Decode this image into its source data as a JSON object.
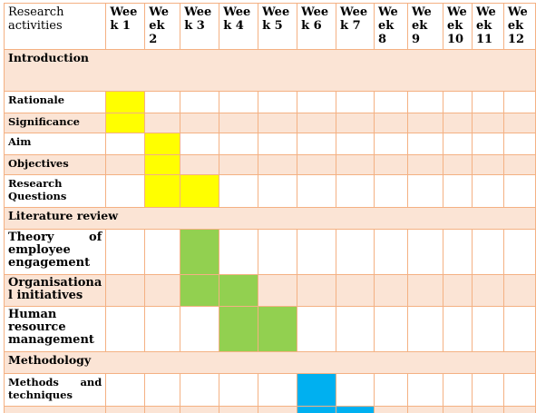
{
  "header": {
    "activity_label": "Research activities",
    "weeks": [
      "Wee k 1",
      "We ek 2",
      "Wee k 3",
      "Wee k 4",
      "Wee k 5",
      "Wee k 6",
      "Wee k 7",
      "We ek 8",
      "We ek 9",
      "We ek 10",
      "We ek 11",
      "We ek 12"
    ]
  },
  "colors": {
    "border": "#f4b183",
    "band": "#fbe4d5",
    "yellow": "#ffff00",
    "green": "#92d050",
    "blue": "#00b0f0"
  },
  "rows": [
    {
      "type": "section",
      "label": "Introduction"
    },
    {
      "type": "task",
      "label": "Rationale",
      "weeks": [
        1
      ],
      "color": "yellow"
    },
    {
      "type": "task",
      "label": "Significance",
      "weeks": [
        1
      ],
      "color": "yellow"
    },
    {
      "type": "task",
      "label": "Aim",
      "weeks": [
        2
      ],
      "color": "yellow"
    },
    {
      "type": "task",
      "label": "Objectives",
      "weeks": [
        2
      ],
      "color": "yellow"
    },
    {
      "type": "task",
      "label": "Research Questions",
      "weeks": [
        2,
        3
      ],
      "color": "yellow"
    },
    {
      "type": "section",
      "label": "Literature review"
    },
    {
      "type": "task",
      "label": "Theory of employee engagement",
      "weeks": [
        3
      ],
      "color": "green"
    },
    {
      "type": "task",
      "label": "Organisationa l initiatives",
      "weeks": [
        3,
        4
      ],
      "color": "green"
    },
    {
      "type": "task",
      "label": "Human resource management",
      "weeks": [
        4,
        5
      ],
      "color": "green"
    },
    {
      "type": "section",
      "label": "Methodology"
    },
    {
      "type": "task",
      "label": "Methods and techniques",
      "weeks": [
        6
      ],
      "color": "blue"
    },
    {
      "type": "task",
      "label": "",
      "weeks": [
        6,
        7
      ],
      "color": "blue"
    }
  ]
}
